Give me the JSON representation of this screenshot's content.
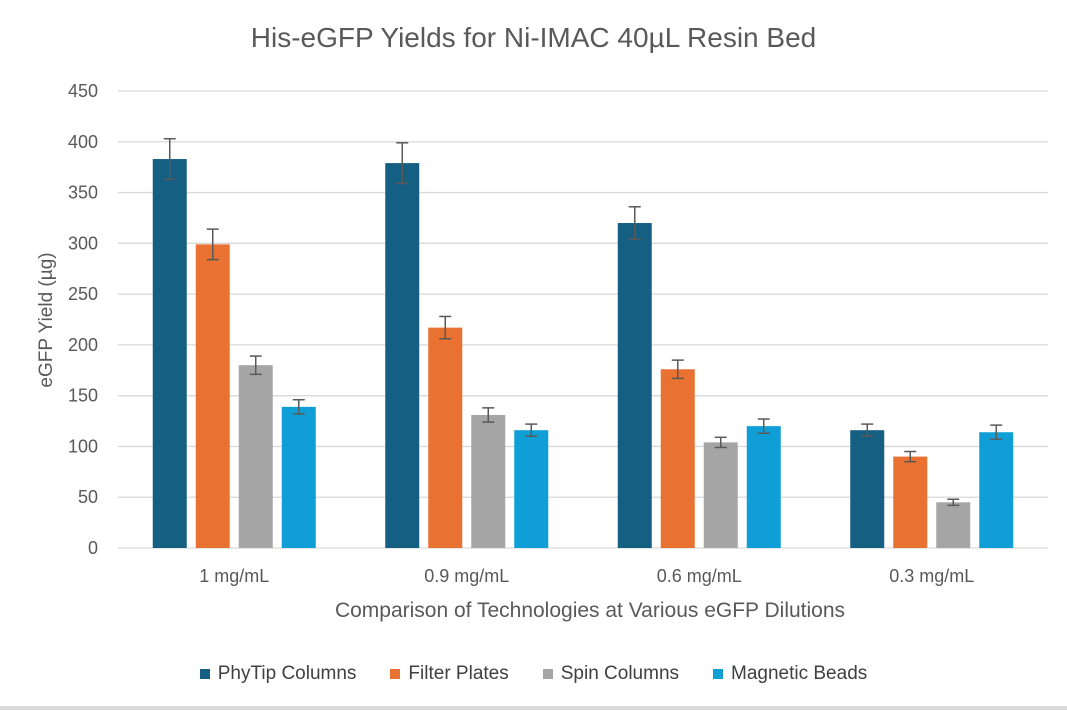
{
  "chart_data": {
    "type": "bar",
    "title": "His-eGFP Yields for Ni-IMAC 40µL Resin Bed",
    "xlabel": "Comparison of Technologies at Various eGFP Dilutions",
    "ylabel": "eGFP Yield (µg)",
    "ylim": [
      0,
      450
    ],
    "yticks": [
      0,
      50,
      100,
      150,
      200,
      250,
      300,
      350,
      400,
      450
    ],
    "grid": true,
    "legend_position": "bottom",
    "categories": [
      "1 mg/mL",
      "0.9 mg/mL",
      "0.6 mg/mL",
      "0.3 mg/mL"
    ],
    "series": [
      {
        "name": "PhyTip Columns",
        "color": "#155f82",
        "values": [
          383,
          379,
          320,
          116
        ],
        "errors": [
          20,
          20,
          16,
          6
        ]
      },
      {
        "name": "Filter Plates",
        "color": "#e97132",
        "values": [
          299,
          217,
          176,
          90
        ],
        "errors": [
          15,
          11,
          9,
          5
        ]
      },
      {
        "name": "Spin Columns",
        "color": "#a5a5a5",
        "values": [
          180,
          131,
          104,
          45
        ],
        "errors": [
          9,
          7,
          5,
          3
        ]
      },
      {
        "name": "Magnetic Beads",
        "color": "#0f9ed5",
        "values": [
          139,
          116,
          120,
          114
        ],
        "errors": [
          7,
          6,
          7,
          7
        ]
      }
    ]
  }
}
